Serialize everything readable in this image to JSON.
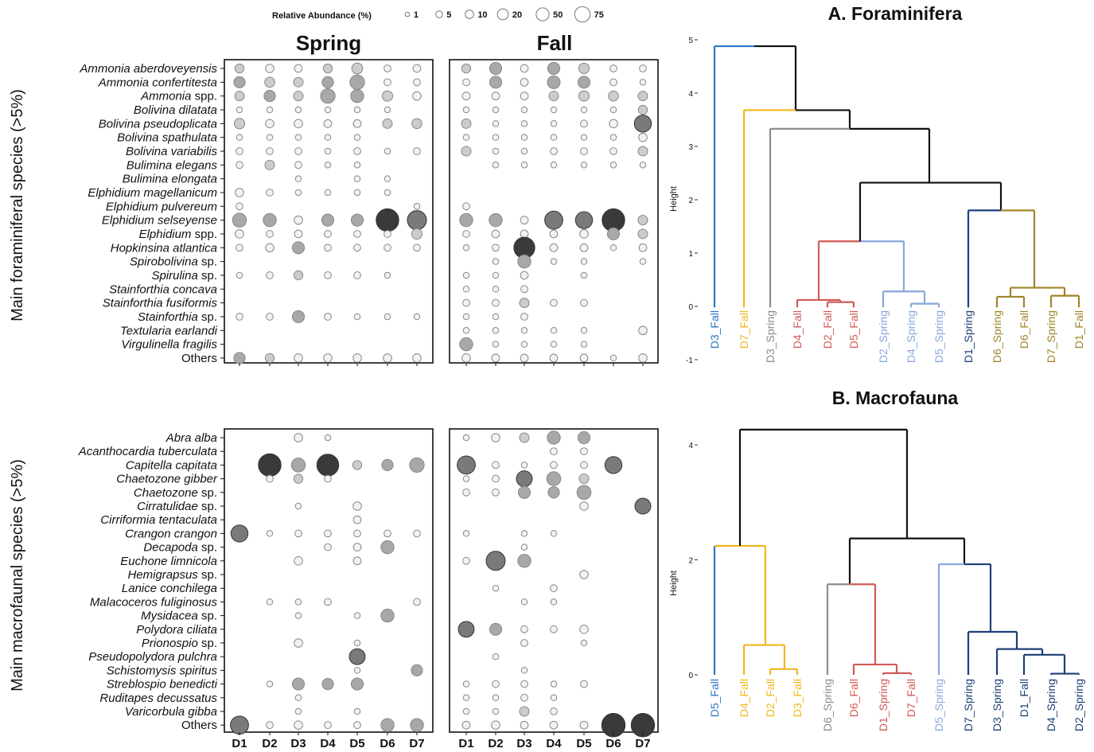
{
  "legend": {
    "title": "Relative Abundance (%)",
    "items": [
      1,
      5,
      10,
      20,
      50,
      75
    ]
  },
  "bubble": {
    "season_titles": [
      "Spring",
      "Fall"
    ],
    "sites": [
      "D1",
      "D2",
      "D3",
      "D4",
      "D5",
      "D6",
      "D7"
    ],
    "foram": {
      "ylabel": "Main foraminiferal species (>5%)",
      "species": [
        [
          "Ammonia aberdoveyensis"
        ],
        [
          "Ammonia confertitesta"
        ],
        [
          "Ammonia",
          "spp."
        ],
        [
          "Bolivina dilatata"
        ],
        [
          "Bolivina pseudoplicata"
        ],
        [
          "Bolivina spathulata"
        ],
        [
          "Bolivina variabilis"
        ],
        [
          "Bulimina elegans"
        ],
        [
          "Bulimina elongata"
        ],
        [
          "Elphidium magellanicum"
        ],
        [
          "Elphidium pulvereum"
        ],
        [
          "Elphidium selseyense"
        ],
        [
          "Elphidium",
          "spp."
        ],
        [
          "Hopkinsina atlantica"
        ],
        [
          "Spirobolivina",
          "sp."
        ],
        [
          "Spirulina",
          "sp."
        ],
        [
          "Stainforthia concava"
        ],
        [
          "Stainforthia fusiformis"
        ],
        [
          "Stainforthia",
          "sp."
        ],
        [
          "Textularia earlandi"
        ],
        [
          "Virgulinella fragilis"
        ],
        [
          "",
          "Others"
        ]
      ],
      "spring": [
        [
          5,
          4,
          3,
          5,
          9,
          2,
          3
        ],
        [
          10,
          7,
          6,
          10,
          20,
          2,
          2
        ],
        [
          6,
          10,
          6,
          20,
          15,
          8,
          4
        ],
        [
          1,
          1,
          1,
          1,
          1,
          1,
          0
        ],
        [
          8,
          4,
          4,
          3,
          3,
          6,
          7
        ],
        [
          1,
          1,
          1,
          1,
          1,
          0,
          0
        ],
        [
          2,
          2,
          2,
          1,
          2,
          1,
          2
        ],
        [
          2,
          6,
          2,
          1,
          1,
          0,
          0
        ],
        [
          0,
          0,
          1,
          0,
          1,
          1,
          0
        ],
        [
          4,
          2,
          1,
          1,
          1,
          1,
          0
        ],
        [
          2,
          0,
          0,
          0,
          0,
          0,
          1
        ],
        [
          18,
          15,
          4,
          12,
          12,
          60,
          40
        ],
        [
          4,
          2,
          3,
          2,
          2,
          2,
          8
        ],
        [
          2,
          4,
          12,
          2,
          2,
          2,
          2
        ],
        [
          0,
          0,
          0,
          0,
          0,
          0,
          0
        ],
        [
          1,
          2,
          5,
          2,
          2,
          1,
          0
        ],
        [
          0,
          0,
          0,
          0,
          0,
          0,
          0
        ],
        [
          0,
          0,
          0,
          0,
          0,
          0,
          0
        ],
        [
          2,
          2,
          12,
          2,
          1,
          1,
          1
        ],
        [
          0,
          0,
          0,
          0,
          0,
          0,
          0
        ],
        [
          0,
          0,
          0,
          0,
          0,
          0,
          0
        ],
        [
          10,
          5,
          4,
          4,
          4,
          4,
          4
        ]
      ],
      "fall": [
        [
          5,
          12,
          3,
          12,
          8,
          2,
          2
        ],
        [
          2,
          12,
          3,
          14,
          12,
          2,
          1
        ],
        [
          3,
          3,
          3,
          6,
          8,
          7,
          6
        ],
        [
          1,
          1,
          1,
          1,
          1,
          1,
          5
        ],
        [
          6,
          1,
          1,
          1,
          2,
          4,
          30
        ],
        [
          1,
          1,
          1,
          1,
          1,
          1,
          4
        ],
        [
          6,
          1,
          1,
          2,
          2,
          2,
          6
        ],
        [
          0,
          1,
          1,
          1,
          1,
          1,
          1
        ],
        [
          0,
          0,
          0,
          0,
          0,
          0,
          0
        ],
        [
          0,
          0,
          0,
          0,
          0,
          0,
          0
        ],
        [
          2,
          0,
          0,
          0,
          0,
          0,
          0
        ],
        [
          15,
          15,
          3,
          35,
          30,
          60,
          6
        ],
        [
          2,
          3,
          3,
          3,
          4,
          12,
          6
        ],
        [
          1,
          2,
          50,
          3,
          3,
          1,
          3
        ],
        [
          0,
          1,
          15,
          1,
          1,
          0,
          1
        ],
        [
          1,
          1,
          3,
          0,
          1,
          0,
          0
        ],
        [
          1,
          1,
          2,
          0,
          0,
          0,
          0
        ],
        [
          2,
          2,
          6,
          2,
          2,
          0,
          0
        ],
        [
          1,
          1,
          2,
          0,
          0,
          0,
          0
        ],
        [
          1,
          1,
          1,
          1,
          1,
          0,
          4
        ],
        [
          15,
          1,
          1,
          1,
          1,
          0,
          0
        ],
        [
          4,
          3,
          3,
          3,
          3,
          1,
          4
        ]
      ]
    },
    "macro": {
      "ylabel": "Main macrofaunal species (>5%)",
      "species": [
        [
          "Abra alba"
        ],
        [
          "Acanthocardia tuberculata"
        ],
        [
          "Capitella capitata"
        ],
        [
          "Chaetozone gibber"
        ],
        [
          "Chaetozone",
          "sp."
        ],
        [
          "Cirratulidae",
          "sp."
        ],
        [
          "Cirriformia tentaculata"
        ],
        [
          "Crangon crangon"
        ],
        [
          "Decapoda",
          "sp."
        ],
        [
          "Euchone limnicola"
        ],
        [
          "Hemigrapsus",
          "sp."
        ],
        [
          "Lanice conchilega"
        ],
        [
          "Malacoceros fuliginosus"
        ],
        [
          "Mysidacea",
          "sp."
        ],
        [
          "Polydora ciliata"
        ],
        [
          "Prionospio",
          "sp."
        ],
        [
          "Pseudopolydora pulchra"
        ],
        [
          "Schistomysis spiritus"
        ],
        [
          "Streblospio benedicti"
        ],
        [
          "Ruditapes decussatus"
        ],
        [
          "Varicorbula gibba"
        ],
        [
          "",
          "Others"
        ]
      ],
      "spring": [
        [
          0,
          0,
          4,
          1,
          0,
          0,
          0
        ],
        [
          0,
          0,
          0,
          0,
          0,
          0,
          0
        ],
        [
          0,
          60,
          18,
          55,
          5,
          10,
          20
        ],
        [
          0,
          2,
          5,
          2,
          0,
          0,
          0
        ],
        [
          0,
          0,
          0,
          0,
          0,
          0,
          0
        ],
        [
          0,
          0,
          1,
          0,
          4,
          0,
          0
        ],
        [
          0,
          0,
          0,
          0,
          3,
          0,
          0
        ],
        [
          30,
          1,
          2,
          2,
          2,
          2,
          2
        ],
        [
          0,
          0,
          0,
          2,
          3,
          15,
          0
        ],
        [
          0,
          0,
          4,
          0,
          3,
          0,
          0
        ],
        [
          0,
          0,
          0,
          0,
          0,
          0,
          0
        ],
        [
          0,
          0,
          0,
          0,
          0,
          0,
          0
        ],
        [
          0,
          1,
          1,
          2,
          0,
          0,
          2
        ],
        [
          0,
          0,
          1,
          0,
          1,
          15,
          0
        ],
        [
          0,
          0,
          0,
          0,
          0,
          0,
          0
        ],
        [
          0,
          0,
          4,
          0,
          1,
          0,
          0
        ],
        [
          0,
          0,
          0,
          0,
          25,
          0,
          0
        ],
        [
          0,
          0,
          0,
          0,
          1,
          0,
          10
        ],
        [
          0,
          1,
          12,
          10,
          12,
          0,
          0
        ],
        [
          0,
          0,
          1,
          0,
          0,
          0,
          0
        ],
        [
          0,
          0,
          1,
          0,
          1,
          0,
          0
        ],
        [
          35,
          2,
          4,
          2,
          2,
          15,
          15
        ]
      ],
      "fall": [
        [
          1,
          4,
          6,
          15,
          12,
          0,
          0
        ],
        [
          0,
          0,
          0,
          2,
          2,
          0,
          0
        ],
        [
          35,
          2,
          1,
          2,
          2,
          30,
          0
        ],
        [
          1,
          2,
          25,
          18,
          6,
          0,
          0
        ],
        [
          2,
          2,
          12,
          10,
          18,
          0,
          0
        ],
        [
          0,
          0,
          0,
          0,
          4,
          0,
          25
        ],
        [
          0,
          0,
          0,
          0,
          0,
          0,
          0
        ],
        [
          1,
          0,
          1,
          1,
          0,
          0,
          0
        ],
        [
          0,
          0,
          1,
          0,
          0,
          0,
          0
        ],
        [
          2,
          40,
          15,
          0,
          0,
          0,
          0
        ],
        [
          0,
          0,
          0,
          0,
          4,
          0,
          0
        ],
        [
          0,
          1,
          0,
          2,
          0,
          0,
          0
        ],
        [
          0,
          0,
          1,
          1,
          0,
          0,
          0
        ],
        [
          0,
          0,
          0,
          0,
          0,
          0,
          0
        ],
        [
          25,
          12,
          2,
          2,
          4,
          0,
          0
        ],
        [
          0,
          0,
          2,
          0,
          1,
          0,
          0
        ],
        [
          0,
          1,
          0,
          0,
          0,
          0,
          0
        ],
        [
          0,
          0,
          1,
          0,
          0,
          0,
          0
        ],
        [
          1,
          2,
          2,
          1,
          2,
          0,
          0
        ],
        [
          1,
          1,
          2,
          1,
          0,
          0,
          0
        ],
        [
          1,
          1,
          6,
          2,
          0,
          0,
          0
        ],
        [
          3,
          4,
          3,
          3,
          3,
          65,
          65
        ]
      ]
    }
  },
  "chart_data": [
    {
      "type": "dendrogram",
      "title": "A. Foraminifera",
      "ylabel": "Height",
      "ylim": [
        -1,
        5
      ],
      "yticks": [
        "5",
        "4",
        "3",
        "2",
        "1",
        "0",
        "-1"
      ],
      "leaves": [
        "D3_Fall",
        "D7_Fall",
        "D3_Spring",
        "D4_Fall",
        "D2_Fall",
        "D5_Fall",
        "D2_Spring",
        "D4_Spring",
        "D5_Spring",
        "D1_Spring",
        "D6_Spring",
        "D6_Fall",
        "D7_Spring",
        "D1_Fall"
      ],
      "merges": [
        {
          "a": "D2_Fall",
          "b": "D5_Fall",
          "h": 0.08,
          "color": "#d15a55"
        },
        {
          "a": "D4_Fall",
          "b": "D2_Fall+D5_Fall",
          "h": 0.12,
          "color": "#d15a55"
        },
        {
          "a": "D4_Spring",
          "b": "D5_Spring",
          "h": 0.05,
          "color": "#86a8de"
        },
        {
          "a": "D2_Spring",
          "b": "D4_Spring+D5_Spring",
          "h": 0.28,
          "color": "#86a8de"
        },
        {
          "a": "D4_Fall..",
          "b": "D2_Spring..",
          "h": 1.22,
          "color": "#d15a55"
        },
        {
          "a": "D6_Spring",
          "b": "D6_Fall",
          "h": 0.18,
          "color": "#a08526"
        },
        {
          "a": "D7_Spring",
          "b": "D1_Fall",
          "h": 0.2,
          "color": "#a08526"
        },
        {
          "a": "D6_Spring..",
          "b": "D7_Spring..",
          "h": 0.35,
          "color": "#a08526"
        },
        {
          "a": "D1_Spring",
          "b": "D6_Spring..",
          "h": 1.8,
          "color": "#1c3f77"
        },
        {
          "a": "reds",
          "b": "D1_Spring..",
          "h": 2.32,
          "color": "#111111"
        },
        {
          "a": "D3_Spring",
          "b": "rest",
          "h": 3.33,
          "color": "#111111"
        },
        {
          "a": "D7_Fall",
          "b": "rest",
          "h": 3.68,
          "color": "#111111"
        },
        {
          "a": "D3_Fall",
          "b": "rest",
          "h": 4.88,
          "color": "#111111"
        }
      ]
    },
    {
      "type": "dendrogram",
      "title": "B. Macrofauna",
      "ylabel": "Height",
      "ylim": [
        0,
        4
      ],
      "yticks": [
        "4",
        "2",
        "0"
      ],
      "leaves": [
        "D5_Fall",
        "D4_Fall",
        "D2_Fall",
        "D3_Fall",
        "D6_Spring",
        "D6_Fall",
        "D1_Spring",
        "D7_Fall",
        "D5_Spring",
        "D7_Spring",
        "D3_Spring",
        "D1_Fall",
        "D4_Spring",
        "D2_Spring"
      ],
      "merges": [
        {
          "a": "D2_Fall",
          "b": "D3_Fall",
          "h": 0.1,
          "color": "#f0b81c"
        },
        {
          "a": "D4_Fall",
          "b": "D2_Fall+D3_Fall",
          "h": 0.52,
          "color": "#f0b81c"
        },
        {
          "a": "D5_Fall",
          "b": "D4_Fall..",
          "h": 2.25,
          "color": "#f0b81c"
        },
        {
          "a": "D1_Spring",
          "b": "D7_Fall",
          "h": 0.03,
          "color": "#d15a55"
        },
        {
          "a": "D6_Fall",
          "b": "D1_Spring+D7_Fall",
          "h": 0.18,
          "color": "#d15a55"
        },
        {
          "a": "D6_Spring",
          "b": "D6_Fall..",
          "h": 1.58,
          "color": "#d15a55"
        },
        {
          "a": "D4_Spring",
          "b": "D2_Spring",
          "h": 0.02,
          "color": "#1c3f77"
        },
        {
          "a": "D1_Fall",
          "b": "D4_Spring..",
          "h": 0.35,
          "color": "#1c3f77"
        },
        {
          "a": "D3_Spring",
          "b": "D1_Fall..",
          "h": 0.45,
          "color": "#1c3f77"
        },
        {
          "a": "D7_Spring",
          "b": "D3_Spring..",
          "h": 0.75,
          "color": "#1c3f77"
        },
        {
          "a": "D5_Spring",
          "b": "D7_Spring..",
          "h": 1.93,
          "color": "#86a8de"
        },
        {
          "a": "D6_Spring..",
          "b": "D5_Spring..",
          "h": 2.38,
          "color": "#111111"
        },
        {
          "a": "D5_Fall..",
          "b": "D6_Spring..",
          "h": 4.28,
          "color": "#111111"
        }
      ]
    }
  ]
}
